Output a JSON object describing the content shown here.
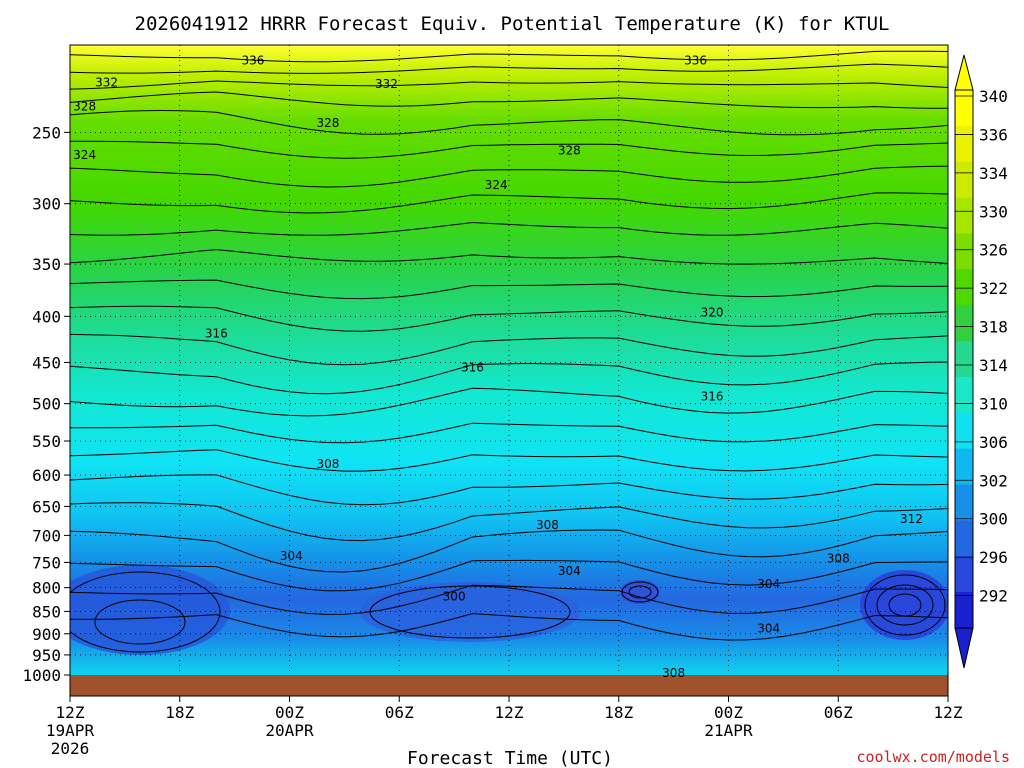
{
  "chart_data": {
    "type": "heatmap",
    "title": "2026041912 HRRR Forecast Equiv. Potential Temperature (K) for KTUL",
    "xlabel": "Forecast Time (UTC)",
    "ylabel": "",
    "credit": "coolwx.com/models",
    "x_ticks": [
      {
        "hours": 0,
        "label": "12Z",
        "sub1": "19APR",
        "sub2": "2026"
      },
      {
        "hours": 6,
        "label": "18Z",
        "sub1": "",
        "sub2": ""
      },
      {
        "hours": 12,
        "label": "00Z",
        "sub1": "20APR",
        "sub2": ""
      },
      {
        "hours": 18,
        "label": "06Z",
        "sub1": "",
        "sub2": ""
      },
      {
        "hours": 24,
        "label": "12Z",
        "sub1": "",
        "sub2": ""
      },
      {
        "hours": 30,
        "label": "18Z",
        "sub1": "",
        "sub2": ""
      },
      {
        "hours": 36,
        "label": "00Z",
        "sub1": "21APR",
        "sub2": ""
      },
      {
        "hours": 42,
        "label": "06Z",
        "sub1": "",
        "sub2": ""
      },
      {
        "hours": 48,
        "label": "12Z",
        "sub1": "",
        "sub2": ""
      }
    ],
    "xlim": [
      0,
      48
    ],
    "y_ticks": [
      250,
      300,
      350,
      400,
      450,
      500,
      550,
      600,
      650,
      700,
      750,
      800,
      850,
      900,
      950,
      1000
    ],
    "ylim": [
      200,
      1000
    ],
    "y_scale": "log-pressure",
    "colorbar": {
      "labels": [
        340,
        336,
        334,
        330,
        326,
        322,
        318,
        314,
        310,
        306,
        302,
        300,
        296,
        292
      ],
      "colors": [
        "#ffff00",
        "#eaf200",
        "#cdeb00",
        "#a8e600",
        "#7ddc00",
        "#4fd800",
        "#30d040",
        "#25d890",
        "#1ce8c8",
        "#10e0f0",
        "#10b8f0",
        "#1890e8",
        "#2468e0",
        "#2a48dc",
        "#1a20d0"
      ]
    },
    "legend_position": "right",
    "contour_labels": [
      {
        "text": "336",
        "h": 10.0,
        "p": 208
      },
      {
        "text": "336",
        "h": 34.2,
        "p": 208
      },
      {
        "text": "332",
        "h": 2.0,
        "p": 220
      },
      {
        "text": "332",
        "h": 17.3,
        "p": 221
      },
      {
        "text": "328",
        "h": 0.8,
        "p": 234
      },
      {
        "text": "328",
        "h": 14.1,
        "p": 244
      },
      {
        "text": "328",
        "h": 27.3,
        "p": 262
      },
      {
        "text": "324",
        "h": 0.8,
        "p": 265
      },
      {
        "text": "324",
        "h": 23.3,
        "p": 286
      },
      {
        "text": "320",
        "h": 35.1,
        "p": 396
      },
      {
        "text": "316",
        "h": 8.0,
        "p": 418
      },
      {
        "text": "316",
        "h": 22.0,
        "p": 456
      },
      {
        "text": "316",
        "h": 35.1,
        "p": 491
      },
      {
        "text": "312",
        "h": 46.0,
        "p": 671
      },
      {
        "text": "308",
        "h": 14.1,
        "p": 583
      },
      {
        "text": "308",
        "h": 26.1,
        "p": 682
      },
      {
        "text": "308",
        "h": 42.0,
        "p": 743
      },
      {
        "text": "308",
        "h": 33.0,
        "p": 995
      },
      {
        "text": "304",
        "h": 12.1,
        "p": 738
      },
      {
        "text": "304",
        "h": 27.3,
        "p": 767
      },
      {
        "text": "304",
        "h": 38.2,
        "p": 793
      },
      {
        "text": "304",
        "h": 38.2,
        "p": 888
      },
      {
        "text": "300",
        "h": 21.0,
        "p": 818
      }
    ]
  }
}
